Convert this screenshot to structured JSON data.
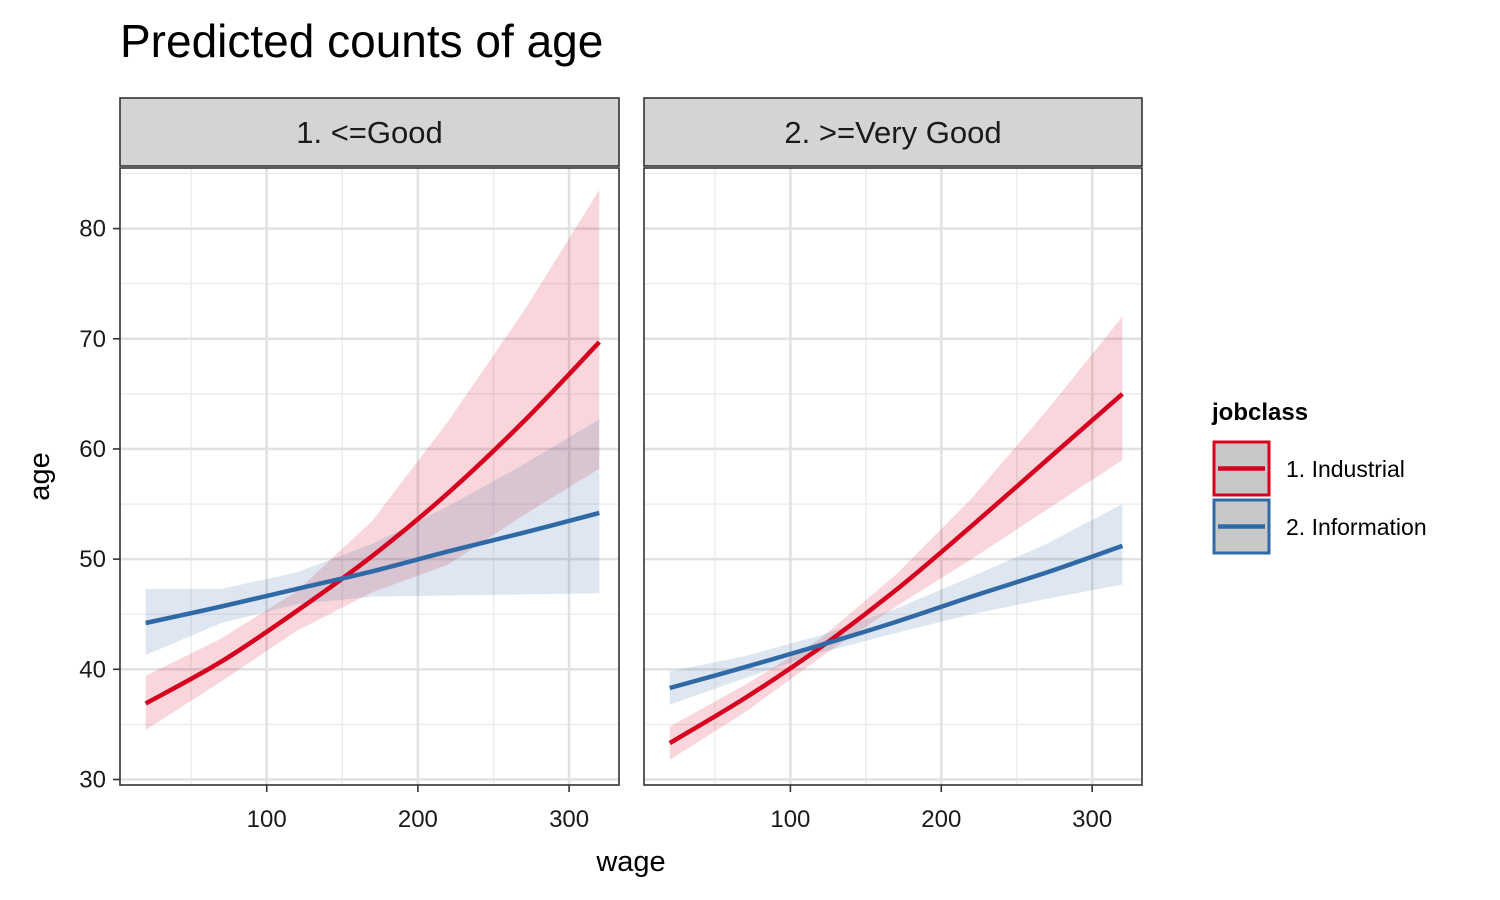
{
  "chart_data": {
    "type": "line",
    "title": "Predicted counts of age",
    "xlabel": "wage",
    "ylabel": "age",
    "xlim": [
      3,
      333
    ],
    "ylim": [
      29.5,
      85.5
    ],
    "xticks": [
      100,
      200,
      300
    ],
    "yticks": [
      30,
      40,
      50,
      60,
      70,
      80
    ],
    "grid": true,
    "legend_position": "right",
    "legend_title": "jobclass",
    "x": [
      20,
      70,
      120,
      170,
      220,
      270,
      320
    ],
    "facets": [
      {
        "label": "1. <=Good",
        "series": [
          {
            "name": "1. Industrial",
            "color": "#d7001f",
            "values": [
              36.9,
              40.7,
              45.3,
              50.3,
              56.0,
              62.5,
              69.7
            ],
            "lower": [
              34.5,
              38.9,
              43.5,
              47.0,
              49.5,
              54.0,
              58.2
            ],
            "upper": [
              39.4,
              42.8,
              47.1,
              53.5,
              62.5,
              72.5,
              83.5
            ]
          },
          {
            "name": "2. Information",
            "color": "#2f6aa6",
            "values": [
              44.2,
              45.7,
              47.3,
              48.9,
              50.7,
              52.4,
              54.2
            ],
            "lower": [
              41.3,
              44.2,
              45.9,
              46.6,
              46.7,
              46.8,
              46.9
            ],
            "upper": [
              47.3,
              47.3,
              48.8,
              51.4,
              54.8,
              58.6,
              62.7
            ]
          }
        ]
      },
      {
        "label": "2. >=Very Good",
        "series": [
          {
            "name": "1. Industrial",
            "color": "#d7001f",
            "values": [
              33.3,
              37.4,
              42.0,
              47.2,
              53.0,
              59.0,
              65.0
            ],
            "lower": [
              31.8,
              36.1,
              41.1,
              45.7,
              50.0,
              54.5,
              59.0
            ],
            "upper": [
              34.8,
              38.6,
              42.8,
              48.6,
              55.5,
              63.5,
              72.0
            ]
          },
          {
            "name": "2. Information",
            "color": "#2f6aa6",
            "values": [
              38.3,
              40.2,
              42.2,
              44.3,
              46.6,
              48.8,
              51.2
            ],
            "lower": [
              36.8,
              39.2,
              41.5,
              43.3,
              45.0,
              46.4,
              47.7
            ],
            "upper": [
              39.8,
              41.2,
              43.1,
              45.5,
              48.4,
              51.4,
              55.0
            ]
          }
        ]
      }
    ]
  }
}
